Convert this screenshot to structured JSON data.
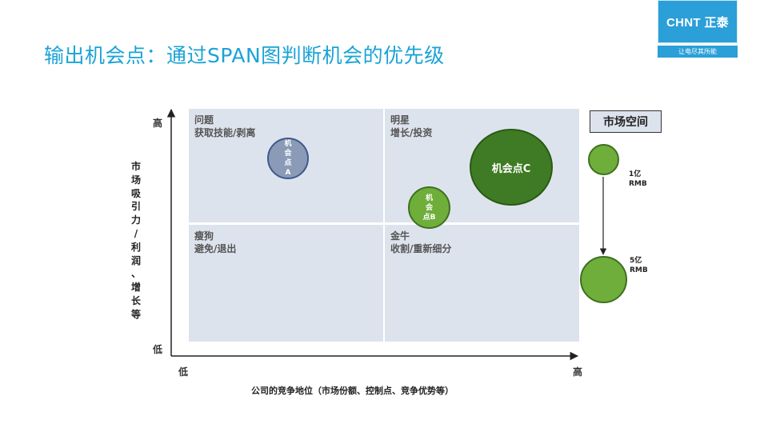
{
  "title": "输出机会点：通过SPAN图判断机会的优先级",
  "logo": {
    "brand": "CHNT 正泰",
    "slogan": "让电尽其所能"
  },
  "quadrants": {
    "top_left": {
      "title": "问题",
      "subtitle": "获取技能/剥离"
    },
    "top_right": {
      "title": "明星",
      "subtitle": "增长/投资"
    },
    "bottom_left": {
      "title": "瘦狗",
      "subtitle": "避免/退出"
    },
    "bottom_right": {
      "title": "金牛",
      "subtitle": "收割/重新细分"
    }
  },
  "axes": {
    "y_high": "高",
    "y_low": "低",
    "x_low": "低",
    "x_high": "高",
    "y_title_chars": [
      "市",
      "场",
      "吸",
      "引",
      "力",
      "/",
      "利",
      "润",
      "、",
      "增",
      "长",
      "等"
    ],
    "x_title": "公司的竞争地位（市场份额、控制点、竞争优势等）"
  },
  "bubbles": {
    "a": {
      "lines": [
        "机",
        "会",
        "点",
        "A"
      ]
    },
    "b": {
      "lines": [
        "机",
        "会",
        "点B"
      ]
    },
    "c": {
      "label": "机会点C"
    }
  },
  "legend": {
    "title": "市场空间",
    "small_value": "1亿",
    "small_unit": "RMB",
    "large_value": "5亿",
    "large_unit": "RMB"
  },
  "colors": {
    "title": "#1aa3d6",
    "quadrant_bg": "#dde3ed",
    "bubble_a": "#8a9ab7",
    "bubble_green": "#6fae3a",
    "bubble_dark_green": "#3f7b24"
  }
}
